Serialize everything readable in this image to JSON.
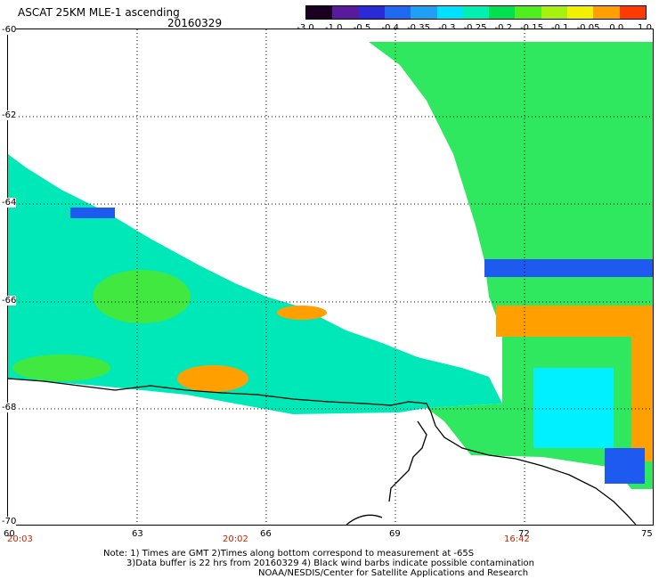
{
  "header": {
    "title": "ASCAT 25KM MLE-1 ascending",
    "date": "20160329"
  },
  "colorbar": {
    "labels": [
      "-3.0",
      "-1.0",
      "-0.5",
      "-0.4",
      "-0.35",
      "-0.3",
      "-0.25",
      "-0.2",
      "-0.15",
      "-0.1",
      "-0.05",
      "0.0",
      "1.0"
    ],
    "colors": [
      "#1a0020",
      "#5a1a9e",
      "#2a2ad6",
      "#1f6af0",
      "#20a0f5",
      "#00e0ff",
      "#00f0b0",
      "#00e050",
      "#50ee20",
      "#a8f010",
      "#f0f000",
      "#ffa000",
      "#ff3a00"
    ]
  },
  "axes": {
    "y_labels": [
      "-60",
      "-62",
      "-64",
      "-66",
      "-68",
      "-70"
    ],
    "x_labels": [
      "60",
      "63",
      "66",
      "69",
      "72",
      "75"
    ],
    "time_labels": [
      "20:03",
      "20:02",
      "16:42"
    ]
  },
  "footer": {
    "note1": "Note: 1) Times are GMT 2)Times along bottom correspond to measurement at -65S",
    "note2": "3)Data buffer is 22 hrs from 20160329 4) Black wind barbs indicate possible contamination",
    "credit": "NOAA/NESDIS/Center for Satellite Applications and Research"
  },
  "map": {
    "swath_left_color": "#00e8b8",
    "swath_right_color": "#30e860",
    "anomaly_colors": {
      "blue": "#1f5af0",
      "orange": "#ffa000",
      "cyan": "#00f0ff",
      "green": "#40e840"
    },
    "coastline_color": "#000000"
  }
}
